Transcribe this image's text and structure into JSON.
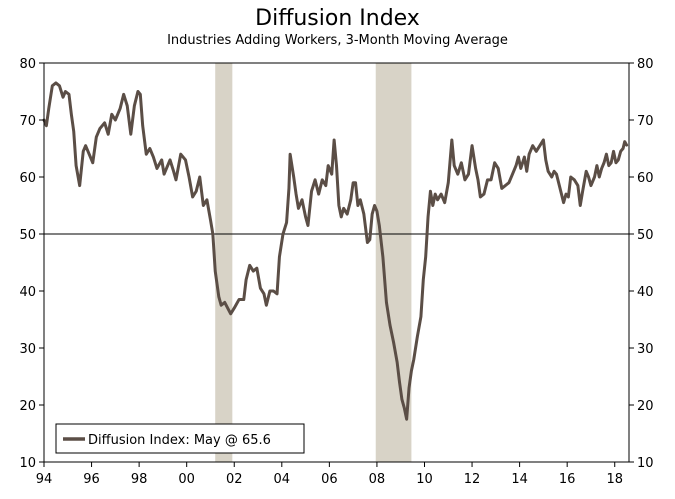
{
  "chart_data": {
    "type": "line",
    "title": "Diffusion Index",
    "subtitle": "Industries Adding Workers, 3-Month Moving Average",
    "xlabel": "",
    "ylabel": "",
    "xlim": [
      1994,
      2018.6
    ],
    "ylim": [
      10,
      80
    ],
    "grid": false,
    "y_ticks": [
      10,
      20,
      30,
      40,
      50,
      60,
      70,
      80
    ],
    "y_tick_labels": [
      "10",
      "20",
      "30",
      "40",
      "50",
      "60",
      "70",
      "80"
    ],
    "x_ticks": [
      1994,
      1996,
      1998,
      2000,
      2002,
      2004,
      2006,
      2008,
      2010,
      2012,
      2014,
      2016,
      2018
    ],
    "x_tick_labels": [
      "94",
      "96",
      "98",
      "00",
      "02",
      "04",
      "06",
      "08",
      "10",
      "12",
      "14",
      "16",
      "18"
    ],
    "reference_line": 50,
    "recessions": [
      {
        "start": 2001.2,
        "end": 2001.92
      },
      {
        "start": 2007.95,
        "end": 2009.45
      }
    ],
    "legend": {
      "position": "bottom-left",
      "label": "Diffusion Index: May @ 65.6"
    },
    "series": [
      {
        "name": "Diffusion Index",
        "color": "#5b4e46",
        "points": [
          [
            1994.0,
            70.0
          ],
          [
            1994.1,
            69.0
          ],
          [
            1994.2,
            72.0
          ],
          [
            1994.35,
            76.0
          ],
          [
            1994.5,
            76.5
          ],
          [
            1994.65,
            76.0
          ],
          [
            1994.8,
            74.0
          ],
          [
            1994.9,
            75.0
          ],
          [
            1995.05,
            74.5
          ],
          [
            1995.15,
            71.0
          ],
          [
            1995.25,
            68.0
          ],
          [
            1995.35,
            62.0
          ],
          [
            1995.5,
            58.5
          ],
          [
            1995.65,
            64.5
          ],
          [
            1995.75,
            65.5
          ],
          [
            1995.9,
            64.0
          ],
          [
            1996.05,
            62.5
          ],
          [
            1996.2,
            67.0
          ],
          [
            1996.35,
            68.5
          ],
          [
            1996.55,
            69.5
          ],
          [
            1996.7,
            67.5
          ],
          [
            1996.85,
            71.0
          ],
          [
            1997.0,
            70.0
          ],
          [
            1997.2,
            72.0
          ],
          [
            1997.35,
            74.5
          ],
          [
            1997.5,
            72.5
          ],
          [
            1997.65,
            67.5
          ],
          [
            1997.8,
            72.5
          ],
          [
            1997.95,
            75.0
          ],
          [
            1998.05,
            74.5
          ],
          [
            1998.15,
            69.0
          ],
          [
            1998.3,
            64.0
          ],
          [
            1998.45,
            65.0
          ],
          [
            1998.6,
            63.5
          ],
          [
            1998.75,
            61.5
          ],
          [
            1998.95,
            63.0
          ],
          [
            1999.05,
            60.5
          ],
          [
            1999.15,
            61.5
          ],
          [
            1999.3,
            63.0
          ],
          [
            1999.45,
            61.0
          ],
          [
            1999.55,
            59.5
          ],
          [
            1999.75,
            64.0
          ],
          [
            1999.95,
            63.0
          ],
          [
            2000.1,
            60.0
          ],
          [
            2000.25,
            56.5
          ],
          [
            2000.4,
            57.5
          ],
          [
            2000.55,
            60.0
          ],
          [
            2000.7,
            55.0
          ],
          [
            2000.85,
            56.0
          ],
          [
            2001.0,
            52.5
          ],
          [
            2001.1,
            50.0
          ],
          [
            2001.2,
            43.5
          ],
          [
            2001.35,
            39.0
          ],
          [
            2001.45,
            37.5
          ],
          [
            2001.6,
            38.0
          ],
          [
            2001.85,
            36.0
          ],
          [
            2002.0,
            37.0
          ],
          [
            2002.2,
            38.5
          ],
          [
            2002.4,
            38.5
          ],
          [
            2002.5,
            42.0
          ],
          [
            2002.65,
            44.5
          ],
          [
            2002.8,
            43.5
          ],
          [
            2002.95,
            44.0
          ],
          [
            2003.1,
            40.5
          ],
          [
            2003.25,
            39.5
          ],
          [
            2003.35,
            37.5
          ],
          [
            2003.5,
            40.0
          ],
          [
            2003.65,
            40.0
          ],
          [
            2003.8,
            39.5
          ],
          [
            2003.9,
            46.0
          ],
          [
            2004.05,
            50.0
          ],
          [
            2004.2,
            52.0
          ],
          [
            2004.3,
            58.0
          ],
          [
            2004.35,
            64.0
          ],
          [
            2004.5,
            60.0
          ],
          [
            2004.6,
            57.0
          ],
          [
            2004.7,
            54.5
          ],
          [
            2004.85,
            56.0
          ],
          [
            2005.0,
            53.0
          ],
          [
            2005.1,
            51.5
          ],
          [
            2005.25,
            57.5
          ],
          [
            2005.4,
            59.5
          ],
          [
            2005.55,
            57.0
          ],
          [
            2005.7,
            59.5
          ],
          [
            2005.85,
            58.5
          ],
          [
            2005.95,
            62.0
          ],
          [
            2006.1,
            60.5
          ],
          [
            2006.2,
            66.5
          ],
          [
            2006.3,
            62.0
          ],
          [
            2006.4,
            55.0
          ],
          [
            2006.5,
            53.0
          ],
          [
            2006.6,
            54.5
          ],
          [
            2006.75,
            53.5
          ],
          [
            2006.9,
            56.0
          ],
          [
            2007.0,
            59.0
          ],
          [
            2007.1,
            59.0
          ],
          [
            2007.2,
            55.0
          ],
          [
            2007.3,
            56.0
          ],
          [
            2007.45,
            53.5
          ],
          [
            2007.6,
            48.5
          ],
          [
            2007.7,
            49.0
          ],
          [
            2007.8,
            53.5
          ],
          [
            2007.9,
            55.0
          ],
          [
            2008.0,
            54.0
          ],
          [
            2008.1,
            51.5
          ],
          [
            2008.25,
            46.0
          ],
          [
            2008.4,
            38.0
          ],
          [
            2008.55,
            34.0
          ],
          [
            2008.7,
            31.0
          ],
          [
            2008.85,
            27.5
          ],
          [
            2008.95,
            24.0
          ],
          [
            2009.05,
            21.0
          ],
          [
            2009.15,
            19.5
          ],
          [
            2009.25,
            17.5
          ],
          [
            2009.35,
            23.0
          ],
          [
            2009.45,
            26.0
          ],
          [
            2009.55,
            28.0
          ],
          [
            2009.7,
            32.0
          ],
          [
            2009.85,
            35.5
          ],
          [
            2009.95,
            42.0
          ],
          [
            2010.05,
            46.0
          ],
          [
            2010.15,
            53.0
          ],
          [
            2010.25,
            57.5
          ],
          [
            2010.35,
            55.0
          ],
          [
            2010.45,
            57.0
          ],
          [
            2010.55,
            56.0
          ],
          [
            2010.7,
            57.0
          ],
          [
            2010.85,
            55.5
          ],
          [
            2011.0,
            59.0
          ],
          [
            2011.15,
            66.5
          ],
          [
            2011.25,
            62.0
          ],
          [
            2011.4,
            60.5
          ],
          [
            2011.55,
            62.5
          ],
          [
            2011.7,
            59.5
          ],
          [
            2011.85,
            60.5
          ],
          [
            2012.0,
            65.5
          ],
          [
            2012.15,
            61.5
          ],
          [
            2012.25,
            59.5
          ],
          [
            2012.35,
            56.5
          ],
          [
            2012.5,
            57.0
          ],
          [
            2012.65,
            59.5
          ],
          [
            2012.8,
            59.5
          ],
          [
            2012.95,
            62.5
          ],
          [
            2013.1,
            61.5
          ],
          [
            2013.25,
            58.0
          ],
          [
            2013.4,
            58.5
          ],
          [
            2013.55,
            59.0
          ],
          [
            2013.7,
            60.5
          ],
          [
            2013.85,
            62.0
          ],
          [
            2013.95,
            63.5
          ],
          [
            2014.05,
            61.5
          ],
          [
            2014.2,
            63.5
          ],
          [
            2014.3,
            61.0
          ],
          [
            2014.4,
            64.0
          ],
          [
            2014.55,
            65.5
          ],
          [
            2014.7,
            64.5
          ],
          [
            2014.85,
            65.5
          ],
          [
            2015.0,
            66.5
          ],
          [
            2015.1,
            63.0
          ],
          [
            2015.2,
            61.0
          ],
          [
            2015.35,
            60.0
          ],
          [
            2015.45,
            61.0
          ],
          [
            2015.55,
            60.5
          ],
          [
            2015.7,
            58.0
          ],
          [
            2015.85,
            55.5
          ],
          [
            2015.95,
            57.0
          ],
          [
            2016.05,
            56.5
          ],
          [
            2016.15,
            60.0
          ],
          [
            2016.3,
            59.5
          ],
          [
            2016.45,
            58.5
          ],
          [
            2016.55,
            55.0
          ],
          [
            2016.65,
            57.5
          ],
          [
            2016.8,
            61.0
          ],
          [
            2016.9,
            60.0
          ],
          [
            2017.0,
            58.5
          ],
          [
            2017.15,
            60.0
          ],
          [
            2017.25,
            62.0
          ],
          [
            2017.35,
            60.0
          ],
          [
            2017.45,
            61.5
          ],
          [
            2017.55,
            62.5
          ],
          [
            2017.65,
            64.0
          ],
          [
            2017.75,
            62.0
          ],
          [
            2017.85,
            62.5
          ],
          [
            2017.95,
            64.5
          ],
          [
            2018.05,
            62.5
          ],
          [
            2018.15,
            63.0
          ],
          [
            2018.25,
            64.5
          ],
          [
            2018.35,
            65.0
          ],
          [
            2018.42,
            66.2
          ],
          [
            2018.5,
            65.6
          ]
        ]
      }
    ]
  }
}
